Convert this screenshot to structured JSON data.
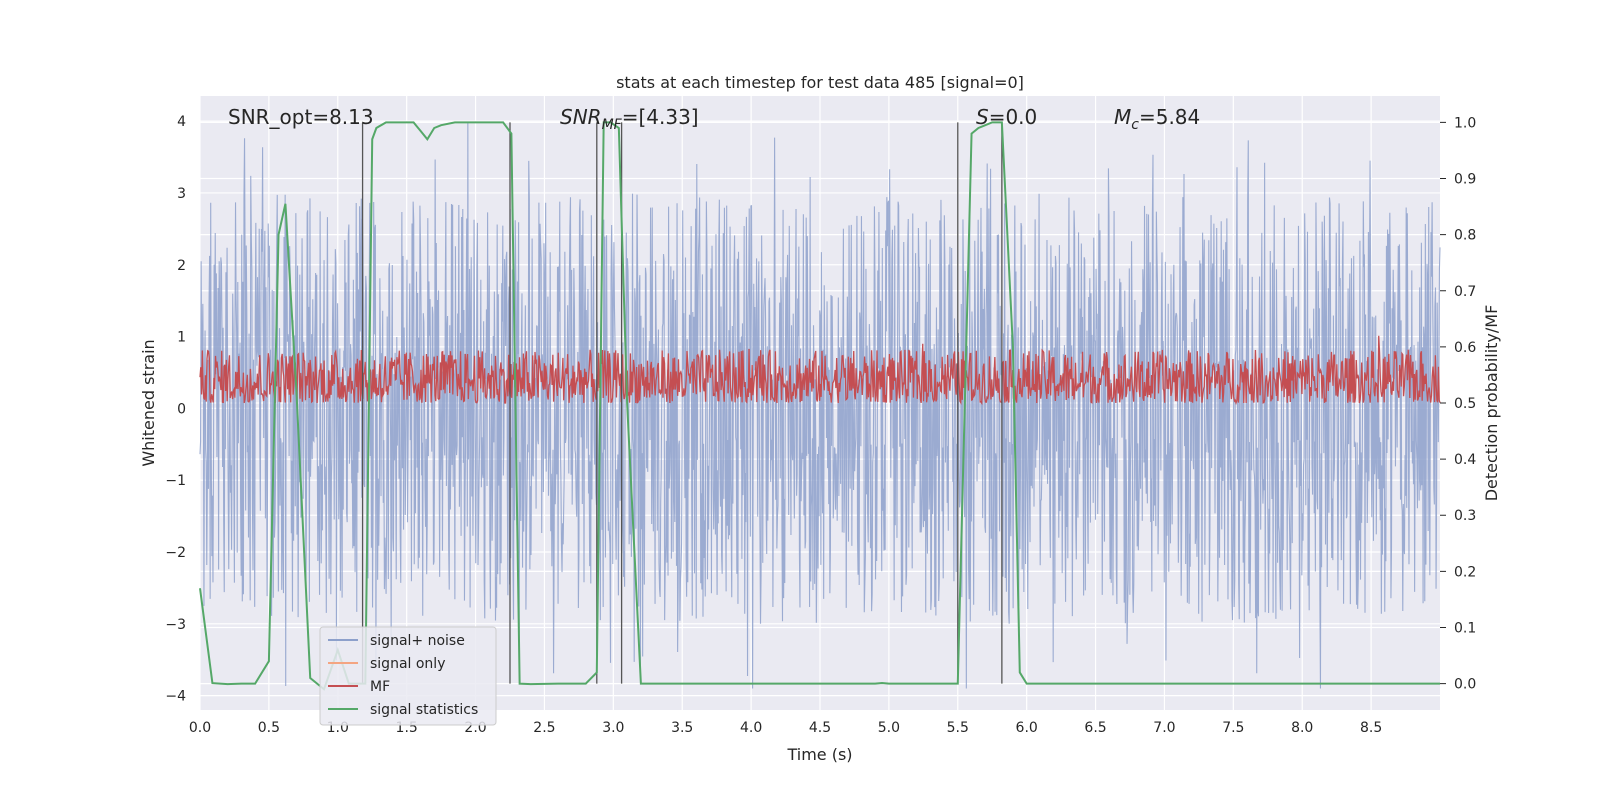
{
  "chart_data": {
    "type": "line",
    "title": "stats at each timestep for test data 485 [signal=0]",
    "xlabel": "Time (s)",
    "ylabel": "Whitened strain",
    "y2label": "Detection probability/MF",
    "xlim": [
      0.0,
      9.0
    ],
    "ylim": [
      -4.2,
      4.35
    ],
    "y2lim": [
      -0.047,
      1.047
    ],
    "xticks": [
      "0.0",
      "0.5",
      "1.0",
      "1.5",
      "2.0",
      "2.5",
      "3.0",
      "3.5",
      "4.0",
      "4.5",
      "5.0",
      "5.5",
      "6.0",
      "6.5",
      "7.0",
      "7.5",
      "8.0",
      "8.5"
    ],
    "yticks": [
      "4",
      "3",
      "2",
      "1",
      "0",
      "−1",
      "−2",
      "−3",
      "−4"
    ],
    "y2ticks": [
      "1.0",
      "0.9",
      "0.8",
      "0.7",
      "0.6",
      "0.5",
      "0.4",
      "0.3",
      "0.2",
      "0.1",
      "0.0"
    ],
    "grid": true,
    "legend_position": "lower-left",
    "annotations": {
      "snr_opt": "SNR_opt=8.13",
      "snr_mf_main": "SNR",
      "snr_mf_sub": "MF",
      "snr_mf_rest": "=[4.33]",
      "s_italic": "S",
      "s_rest": "=0.0",
      "mc_main": "M",
      "mc_sub": "c",
      "mc_rest": "=5.84"
    },
    "series": [
      {
        "name": "signal+ noise",
        "color": "#8da0cb",
        "noise_amplitude_range": [
          -3.9,
          4.0
        ]
      },
      {
        "name": "signal only",
        "color": "#f4a582"
      },
      {
        "name": "MF",
        "color": "#c44e52",
        "y2_range": [
          0.5,
          0.6
        ]
      },
      {
        "name": "signal statistics",
        "color": "#55a868",
        "x": [
          0.0,
          0.09,
          0.2,
          0.3,
          0.4,
          0.5,
          0.57,
          0.62,
          0.7,
          0.8,
          0.9,
          1.0,
          1.08,
          1.2,
          1.25,
          1.28,
          1.35,
          1.45,
          1.55,
          1.6,
          1.65,
          1.7,
          1.75,
          1.85,
          2.0,
          2.2,
          2.26,
          2.32,
          2.4,
          2.6,
          2.8,
          2.88,
          2.93,
          2.98,
          3.04,
          3.1,
          3.2,
          3.5,
          4.0,
          4.5,
          4.9,
          4.95,
          5.0,
          5.5,
          5.6,
          5.65,
          5.75,
          5.82,
          5.9,
          5.95,
          6.0,
          6.5,
          7.0,
          8.0,
          9.0
        ],
        "y": [
          0.17,
          0.001,
          -0.001,
          0.0,
          0.0,
          0.04,
          0.8,
          0.855,
          0.52,
          0.01,
          -0.01,
          0.06,
          0.0,
          0.0,
          0.97,
          0.99,
          1.0,
          1.0,
          1.0,
          0.985,
          0.97,
          0.99,
          0.995,
          1.0,
          1.0,
          1.0,
          0.98,
          0.0,
          -0.001,
          0.0,
          0.0,
          0.02,
          1.0,
          1.0,
          0.99,
          0.5,
          0.0,
          0.0,
          0.0,
          0.0,
          0.0,
          0.001,
          0.0,
          0.0,
          0.98,
          0.99,
          1.0,
          1.0,
          0.6,
          0.02,
          0.0,
          0.0,
          0.0,
          0.0,
          0.0
        ]
      }
    ],
    "vlines_x": [
      1.18,
      2.25,
      2.88,
      3.06,
      5.5,
      5.82
    ]
  }
}
